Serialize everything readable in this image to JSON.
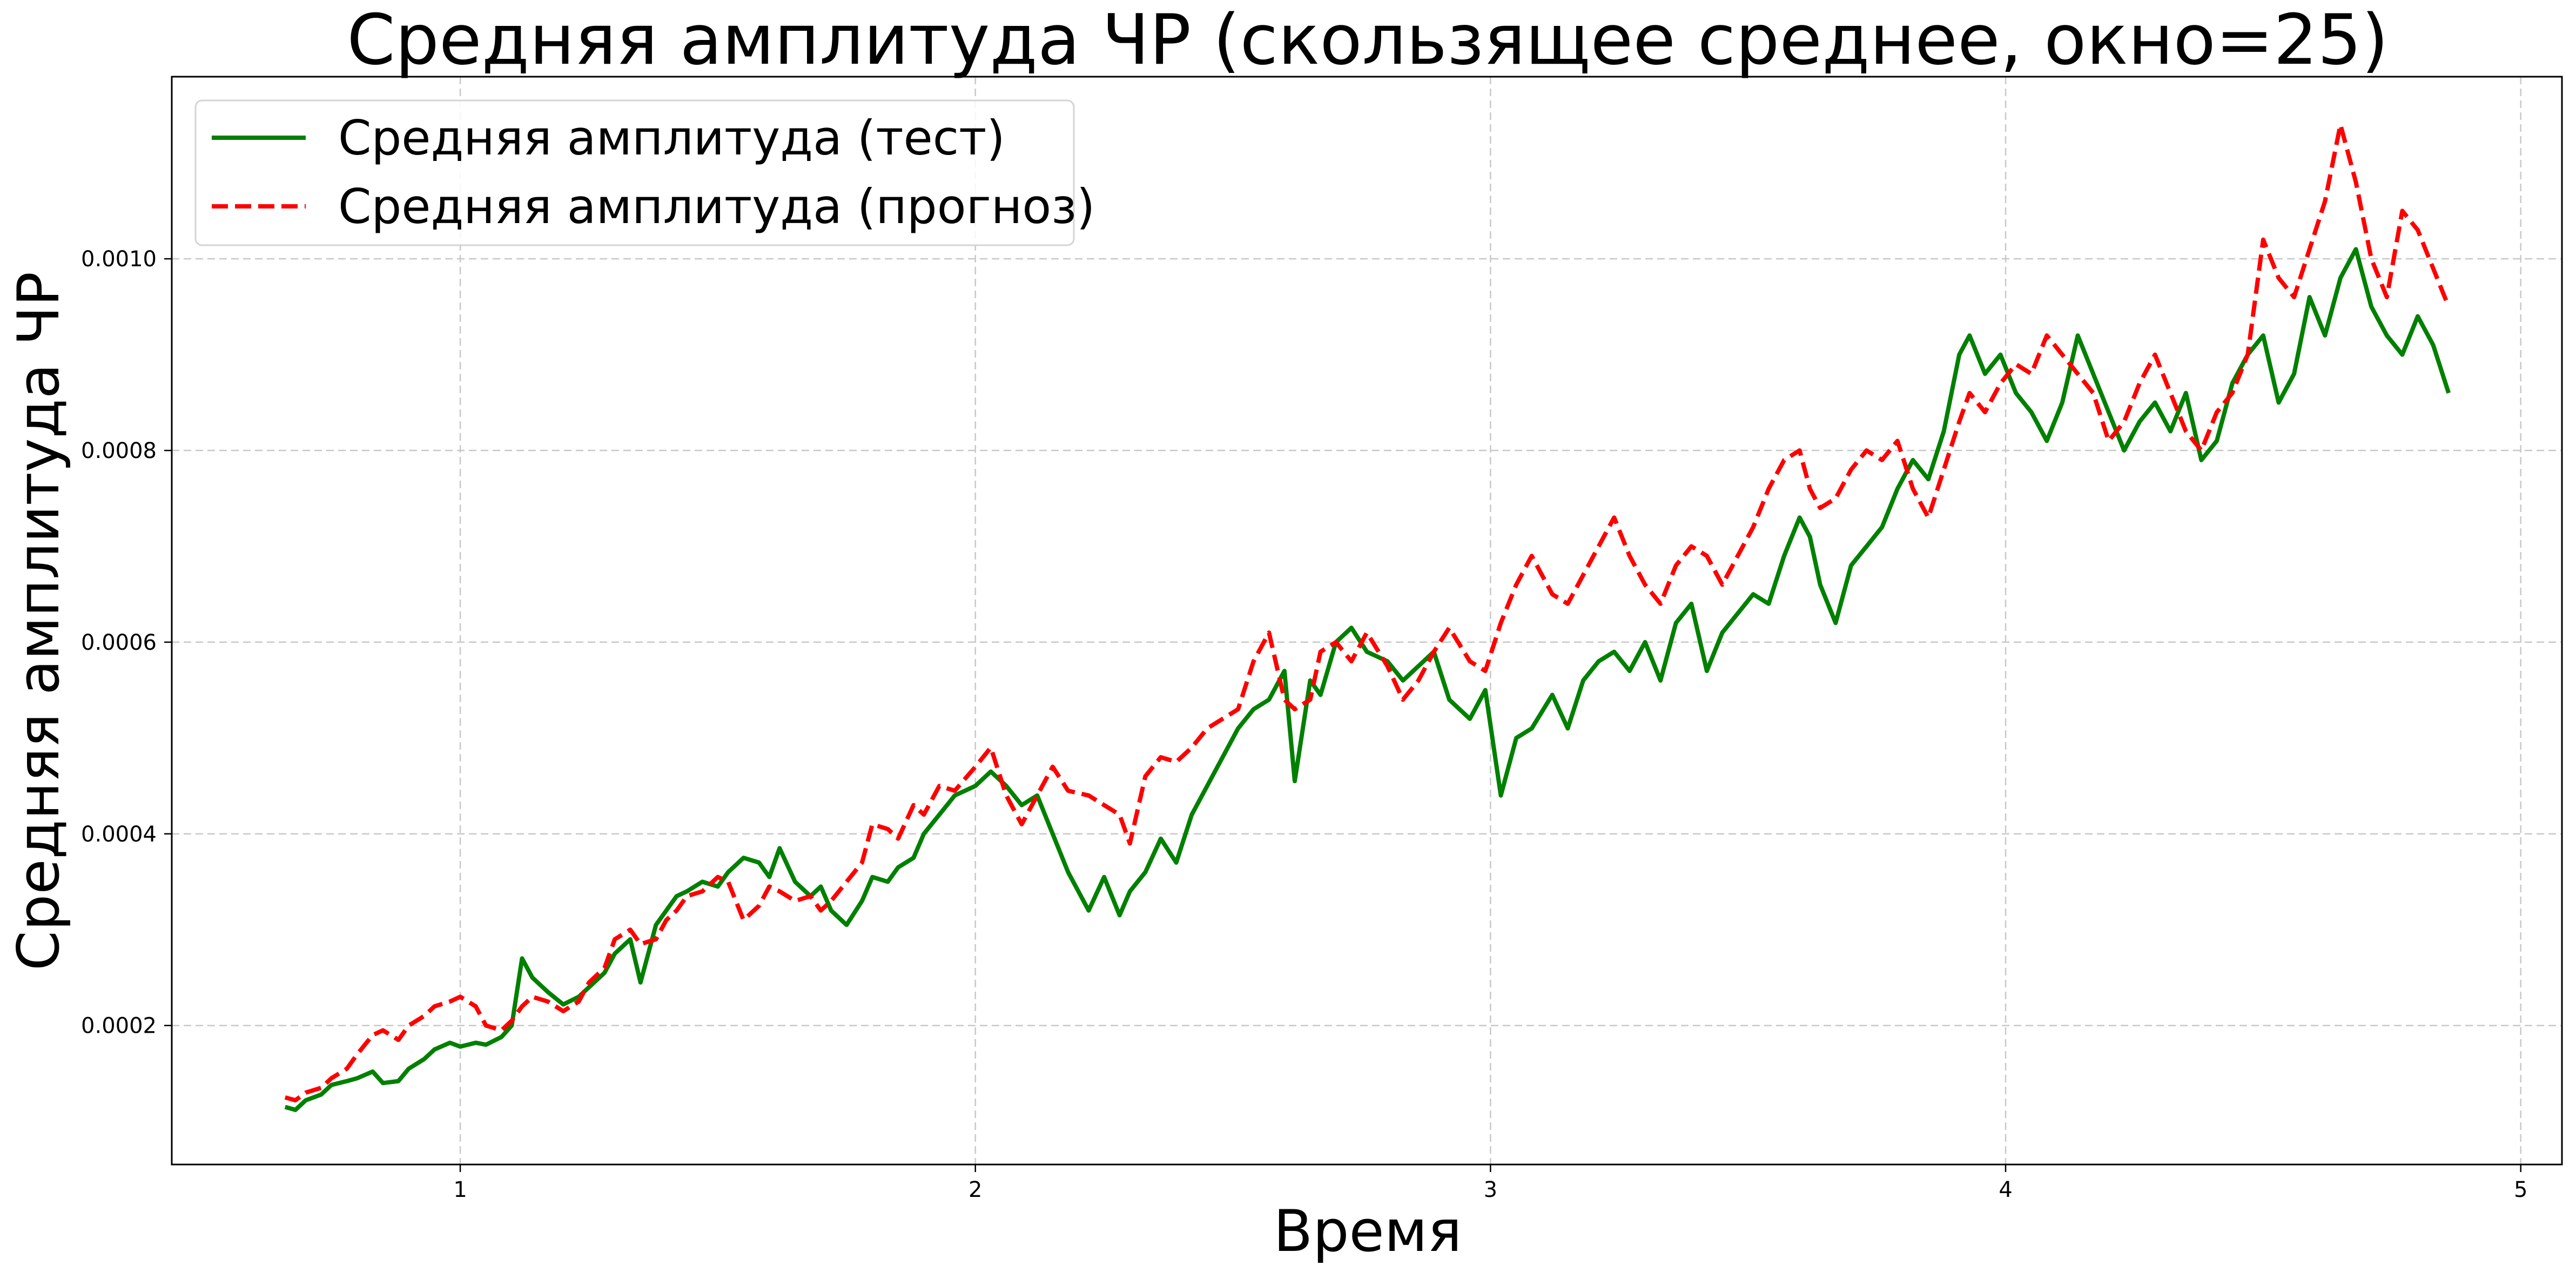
{
  "chart_data": {
    "type": "line",
    "title": "Средняя амплитуда ЧР (скользящее среднее, окно=25)",
    "xlabel": "Время",
    "ylabel": "Средняя амплитуда ЧР",
    "xlim": [
      0.44,
      5.08
    ],
    "ylim": [
      5.5e-05,
      0.00119
    ],
    "x_ticks": [
      1,
      2,
      3,
      4,
      5
    ],
    "x_tick_labels": [
      "1",
      "2",
      "3",
      "4",
      "5"
    ],
    "y_ticks": [
      0.0002,
      0.0004,
      0.0006,
      0.0008,
      0.001
    ],
    "y_tick_labels": [
      "0.0002",
      "0.0004",
      "0.0006",
      "0.0008",
      "0.0010"
    ],
    "grid": true,
    "legend_position": "top-left",
    "series": [
      {
        "name": "Средняя амплитуда (тест)",
        "color": "#008000",
        "style": "solid",
        "x": [
          0.66,
          0.68,
          0.7,
          0.73,
          0.75,
          0.78,
          0.8,
          0.83,
          0.85,
          0.88,
          0.9,
          0.93,
          0.95,
          0.98,
          1.0,
          1.03,
          1.05,
          1.08,
          1.1,
          1.12,
          1.14,
          1.17,
          1.2,
          1.23,
          1.25,
          1.28,
          1.3,
          1.33,
          1.35,
          1.38,
          1.4,
          1.42,
          1.44,
          1.47,
          1.5,
          1.52,
          1.55,
          1.58,
          1.6,
          1.62,
          1.65,
          1.68,
          1.7,
          1.72,
          1.75,
          1.78,
          1.8,
          1.83,
          1.85,
          1.88,
          1.9,
          1.93,
          1.96,
          2.0,
          2.03,
          2.06,
          2.09,
          2.12,
          2.15,
          2.18,
          2.22,
          2.25,
          2.28,
          2.3,
          2.33,
          2.36,
          2.39,
          2.42,
          2.45,
          2.48,
          2.51,
          2.54,
          2.57,
          2.6,
          2.62,
          2.65,
          2.67,
          2.7,
          2.73,
          2.76,
          2.8,
          2.83,
          2.86,
          2.89,
          2.92,
          2.96,
          2.99,
          3.02,
          3.05,
          3.08,
          3.12,
          3.15,
          3.18,
          3.21,
          3.24,
          3.27,
          3.3,
          3.33,
          3.36,
          3.39,
          3.42,
          3.45,
          3.48,
          3.51,
          3.54,
          3.57,
          3.6,
          3.62,
          3.64,
          3.67,
          3.7,
          3.73,
          3.76,
          3.79,
          3.82,
          3.85,
          3.88,
          3.91,
          3.93,
          3.96,
          3.99,
          4.02,
          4.05,
          4.08,
          4.11,
          4.14,
          4.17,
          4.2,
          4.23,
          4.26,
          4.29,
          4.32,
          4.35,
          4.38,
          4.41,
          4.44,
          4.47,
          4.5,
          4.53,
          4.56,
          4.59,
          4.62,
          4.65,
          4.68,
          4.71,
          4.74,
          4.77,
          4.8,
          4.83,
          4.86
        ],
        "y": [
          0.000115,
          0.000112,
          0.000122,
          0.000128,
          0.000138,
          0.000142,
          0.000145,
          0.000152,
          0.00014,
          0.000142,
          0.000155,
          0.000165,
          0.000175,
          0.000182,
          0.000178,
          0.000182,
          0.00018,
          0.000188,
          0.0002,
          0.00027,
          0.00025,
          0.000235,
          0.000222,
          0.00023,
          0.00024,
          0.000255,
          0.000275,
          0.00029,
          0.000245,
          0.000305,
          0.00032,
          0.000335,
          0.00034,
          0.00035,
          0.000345,
          0.00036,
          0.000375,
          0.00037,
          0.000355,
          0.000385,
          0.00035,
          0.000335,
          0.000345,
          0.00032,
          0.000305,
          0.00033,
          0.000355,
          0.00035,
          0.000365,
          0.000375,
          0.0004,
          0.00042,
          0.00044,
          0.00045,
          0.000465,
          0.00045,
          0.00043,
          0.00044,
          0.0004,
          0.00036,
          0.00032,
          0.000355,
          0.000315,
          0.00034,
          0.00036,
          0.000395,
          0.00037,
          0.00042,
          0.00045,
          0.00048,
          0.00051,
          0.00053,
          0.00054,
          0.00057,
          0.000455,
          0.00056,
          0.000545,
          0.0006,
          0.000615,
          0.00059,
          0.00058,
          0.00056,
          0.000575,
          0.00059,
          0.00054,
          0.00052,
          0.00055,
          0.00044,
          0.0005,
          0.00051,
          0.000545,
          0.00051,
          0.00056,
          0.00058,
          0.00059,
          0.00057,
          0.0006,
          0.00056,
          0.00062,
          0.00064,
          0.00057,
          0.00061,
          0.00063,
          0.00065,
          0.00064,
          0.00069,
          0.00073,
          0.00071,
          0.00066,
          0.00062,
          0.00068,
          0.0007,
          0.00072,
          0.00076,
          0.00079,
          0.00077,
          0.00082,
          0.0009,
          0.00092,
          0.00088,
          0.0009,
          0.00086,
          0.00084,
          0.00081,
          0.00085,
          0.00092,
          0.00088,
          0.00084,
          0.0008,
          0.00083,
          0.00085,
          0.00082,
          0.00086,
          0.00079,
          0.00081,
          0.00087,
          0.0009,
          0.00092,
          0.00085,
          0.00088,
          0.00096,
          0.00092,
          0.00098,
          0.00101,
          0.00095,
          0.00092,
          0.0009,
          0.00094,
          0.00091,
          0.00086
        ]
      },
      {
        "name": "Средняя амплитуда (прогноз)",
        "color": "#ff0000",
        "style": "dashed",
        "x": [
          0.66,
          0.68,
          0.7,
          0.73,
          0.75,
          0.78,
          0.8,
          0.83,
          0.85,
          0.88,
          0.9,
          0.93,
          0.95,
          0.98,
          1.0,
          1.03,
          1.05,
          1.08,
          1.1,
          1.12,
          1.14,
          1.17,
          1.2,
          1.23,
          1.25,
          1.28,
          1.3,
          1.33,
          1.35,
          1.38,
          1.4,
          1.42,
          1.44,
          1.47,
          1.5,
          1.52,
          1.55,
          1.58,
          1.6,
          1.62,
          1.65,
          1.68,
          1.7,
          1.72,
          1.75,
          1.78,
          1.8,
          1.83,
          1.85,
          1.88,
          1.9,
          1.93,
          1.96,
          2.0,
          2.03,
          2.06,
          2.09,
          2.12,
          2.15,
          2.18,
          2.22,
          2.25,
          2.28,
          2.3,
          2.33,
          2.36,
          2.39,
          2.42,
          2.45,
          2.48,
          2.51,
          2.54,
          2.57,
          2.6,
          2.62,
          2.65,
          2.67,
          2.7,
          2.73,
          2.76,
          2.8,
          2.83,
          2.86,
          2.89,
          2.92,
          2.96,
          2.99,
          3.02,
          3.05,
          3.08,
          3.12,
          3.15,
          3.18,
          3.21,
          3.24,
          3.27,
          3.3,
          3.33,
          3.36,
          3.39,
          3.42,
          3.45,
          3.48,
          3.51,
          3.54,
          3.57,
          3.6,
          3.62,
          3.64,
          3.67,
          3.7,
          3.73,
          3.76,
          3.79,
          3.82,
          3.85,
          3.88,
          3.91,
          3.93,
          3.96,
          3.99,
          4.02,
          4.05,
          4.08,
          4.11,
          4.14,
          4.17,
          4.2,
          4.23,
          4.26,
          4.29,
          4.32,
          4.35,
          4.38,
          4.41,
          4.44,
          4.47,
          4.5,
          4.53,
          4.56,
          4.59,
          4.62,
          4.65,
          4.68,
          4.71,
          4.74,
          4.77,
          4.8,
          4.83,
          4.86
        ],
        "y": [
          0.000125,
          0.000122,
          0.00013,
          0.000135,
          0.000145,
          0.000155,
          0.00017,
          0.00019,
          0.000195,
          0.000185,
          0.0002,
          0.00021,
          0.00022,
          0.000225,
          0.00023,
          0.00022,
          0.0002,
          0.000195,
          0.000205,
          0.00022,
          0.00023,
          0.000225,
          0.000215,
          0.000225,
          0.000245,
          0.00026,
          0.00029,
          0.0003,
          0.000285,
          0.00029,
          0.00031,
          0.00032,
          0.000335,
          0.00034,
          0.000355,
          0.00035,
          0.00031,
          0.000325,
          0.000345,
          0.00034,
          0.00033,
          0.000335,
          0.00032,
          0.00033,
          0.00035,
          0.00037,
          0.00041,
          0.000405,
          0.000395,
          0.00043,
          0.00042,
          0.00045,
          0.000445,
          0.00047,
          0.00049,
          0.00044,
          0.00041,
          0.00044,
          0.00047,
          0.000445,
          0.00044,
          0.00043,
          0.00042,
          0.00039,
          0.00046,
          0.00048,
          0.000475,
          0.00049,
          0.00051,
          0.00052,
          0.00053,
          0.00058,
          0.00061,
          0.00054,
          0.00053,
          0.00054,
          0.00059,
          0.0006,
          0.00058,
          0.00061,
          0.000575,
          0.00054,
          0.00056,
          0.00059,
          0.000615,
          0.00058,
          0.00057,
          0.00062,
          0.00066,
          0.00069,
          0.00065,
          0.00064,
          0.00067,
          0.0007,
          0.00073,
          0.00069,
          0.00066,
          0.00064,
          0.00068,
          0.0007,
          0.00069,
          0.00066,
          0.00069,
          0.00072,
          0.00076,
          0.00079,
          0.0008,
          0.00076,
          0.00074,
          0.00075,
          0.00078,
          0.0008,
          0.00079,
          0.00081,
          0.00076,
          0.00073,
          0.00078,
          0.00083,
          0.00086,
          0.00084,
          0.00087,
          0.00089,
          0.00088,
          0.00092,
          0.0009,
          0.00088,
          0.00086,
          0.00081,
          0.00083,
          0.00087,
          0.0009,
          0.00086,
          0.00082,
          0.0008,
          0.00084,
          0.00086,
          0.0009,
          0.00102,
          0.00098,
          0.00096,
          0.00101,
          0.00106,
          0.00114,
          0.00108,
          0.001,
          0.00096,
          0.00105,
          0.00103,
          0.00099,
          0.00095
        ]
      }
    ]
  }
}
